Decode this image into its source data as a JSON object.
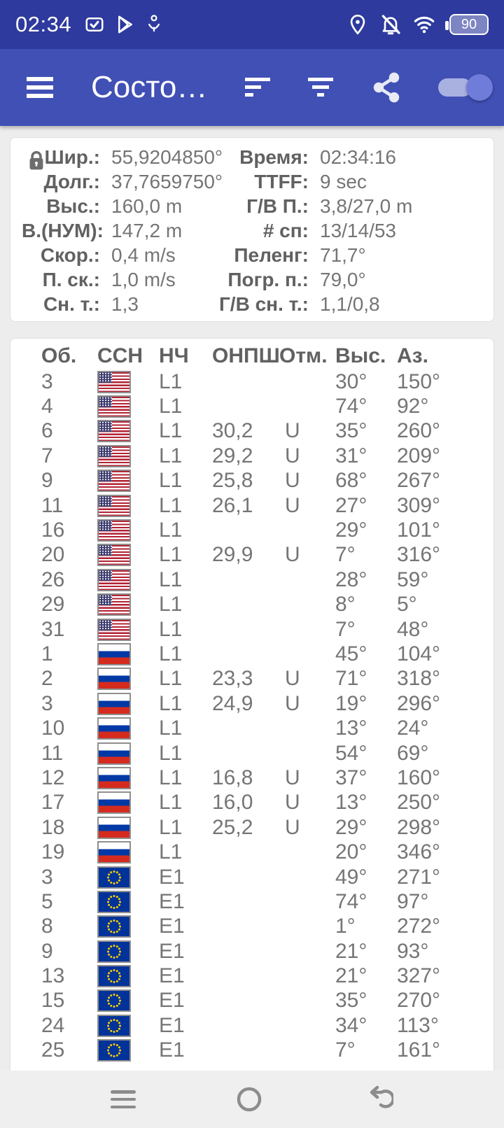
{
  "status_bar": {
    "time": "02:34",
    "battery_percent": "90",
    "left_icons": [
      "checkbox-notification",
      "play-store",
      "usb-beacon"
    ],
    "right_icons": [
      "location-on",
      "notifications-off",
      "wifi",
      "battery"
    ]
  },
  "app_bar": {
    "title": "Состо…",
    "background_color": "#4150b5",
    "status_bar_color": "#2e3a9d",
    "toggle_on": true,
    "icons": [
      "menu",
      "sort",
      "filter",
      "share",
      "toggle"
    ]
  },
  "info_card": {
    "lock_icon": "location-locked",
    "rows": [
      {
        "label_left": "Шир.:",
        "value_left": "55,9204850°",
        "label_right": "Время:",
        "value_right": "02:34:16"
      },
      {
        "label_left": "Долг.:",
        "value_left": "37,7659750°",
        "label_right": "TTFF:",
        "value_right": "9 sec"
      },
      {
        "label_left": "Выс.:",
        "value_left": "160,0 m",
        "label_right": "Г/В П.:",
        "value_right": "3,8/27,0 m"
      },
      {
        "label_left": "В.(НУМ):",
        "value_left": "147,2 m",
        "label_right": "# сп:",
        "value_right": "13/14/53"
      },
      {
        "label_left": "Скор.:",
        "value_left": "0,4 m/s",
        "label_right": "Пеленг:",
        "value_right": "71,7°"
      },
      {
        "label_left": "П. ск.:",
        "value_left": "1,0 m/s",
        "label_right": "Погр. п.:",
        "value_right": "79,0°"
      },
      {
        "label_left": "Сн. т.:",
        "value_left": "1,3",
        "label_right": "Г/В сн. т.:",
        "value_right": "1,1/0,8"
      }
    ]
  },
  "table": {
    "headers": [
      "Об.",
      "ССН",
      "НЧ",
      "ОНПШ",
      "Отм.",
      "Выс.",
      "Аз."
    ],
    "rows": [
      {
        "id": "3",
        "flag": "usa",
        "freq": "L1",
        "cn0": "",
        "used": "",
        "elev": "30°",
        "az": "150°"
      },
      {
        "id": "4",
        "flag": "usa",
        "freq": "L1",
        "cn0": "",
        "used": "",
        "elev": "74°",
        "az": "92°"
      },
      {
        "id": "6",
        "flag": "usa",
        "freq": "L1",
        "cn0": "30,2",
        "used": "U",
        "elev": "35°",
        "az": "260°"
      },
      {
        "id": "7",
        "flag": "usa",
        "freq": "L1",
        "cn0": "29,2",
        "used": "U",
        "elev": "31°",
        "az": "209°"
      },
      {
        "id": "9",
        "flag": "usa",
        "freq": "L1",
        "cn0": "25,8",
        "used": "U",
        "elev": "68°",
        "az": "267°"
      },
      {
        "id": "11",
        "flag": "usa",
        "freq": "L1",
        "cn0": "26,1",
        "used": "U",
        "elev": "27°",
        "az": "309°"
      },
      {
        "id": "16",
        "flag": "usa",
        "freq": "L1",
        "cn0": "",
        "used": "",
        "elev": "29°",
        "az": "101°"
      },
      {
        "id": "20",
        "flag": "usa",
        "freq": "L1",
        "cn0": "29,9",
        "used": "U",
        "elev": "7°",
        "az": "316°"
      },
      {
        "id": "26",
        "flag": "usa",
        "freq": "L1",
        "cn0": "",
        "used": "",
        "elev": "28°",
        "az": "59°"
      },
      {
        "id": "29",
        "flag": "usa",
        "freq": "L1",
        "cn0": "",
        "used": "",
        "elev": "8°",
        "az": "5°"
      },
      {
        "id": "31",
        "flag": "usa",
        "freq": "L1",
        "cn0": "",
        "used": "",
        "elev": "7°",
        "az": "48°"
      },
      {
        "id": "1",
        "flag": "russia",
        "freq": "L1",
        "cn0": "",
        "used": "",
        "elev": "45°",
        "az": "104°"
      },
      {
        "id": "2",
        "flag": "russia",
        "freq": "L1",
        "cn0": "23,3",
        "used": "U",
        "elev": "71°",
        "az": "318°"
      },
      {
        "id": "3",
        "flag": "russia",
        "freq": "L1",
        "cn0": "24,9",
        "used": "U",
        "elev": "19°",
        "az": "296°"
      },
      {
        "id": "10",
        "flag": "russia",
        "freq": "L1",
        "cn0": "",
        "used": "",
        "elev": "13°",
        "az": "24°"
      },
      {
        "id": "11",
        "flag": "russia",
        "freq": "L1",
        "cn0": "",
        "used": "",
        "elev": "54°",
        "az": "69°"
      },
      {
        "id": "12",
        "flag": "russia",
        "freq": "L1",
        "cn0": "16,8",
        "used": "U",
        "elev": "37°",
        "az": "160°"
      },
      {
        "id": "17",
        "flag": "russia",
        "freq": "L1",
        "cn0": "16,0",
        "used": "U",
        "elev": "13°",
        "az": "250°"
      },
      {
        "id": "18",
        "flag": "russia",
        "freq": "L1",
        "cn0": "25,2",
        "used": "U",
        "elev": "29°",
        "az": "298°"
      },
      {
        "id": "19",
        "flag": "russia",
        "freq": "L1",
        "cn0": "",
        "used": "",
        "elev": "20°",
        "az": "346°"
      },
      {
        "id": "3",
        "flag": "eu",
        "freq": "E1",
        "cn0": "",
        "used": "",
        "elev": "49°",
        "az": "271°"
      },
      {
        "id": "5",
        "flag": "eu",
        "freq": "E1",
        "cn0": "",
        "used": "",
        "elev": "74°",
        "az": "97°"
      },
      {
        "id": "8",
        "flag": "eu",
        "freq": "E1",
        "cn0": "",
        "used": "",
        "elev": "1°",
        "az": "272°"
      },
      {
        "id": "9",
        "flag": "eu",
        "freq": "E1",
        "cn0": "",
        "used": "",
        "elev": "21°",
        "az": "93°"
      },
      {
        "id": "13",
        "flag": "eu",
        "freq": "E1",
        "cn0": "",
        "used": "",
        "elev": "21°",
        "az": "327°"
      },
      {
        "id": "15",
        "flag": "eu",
        "freq": "E1",
        "cn0": "",
        "used": "",
        "elev": "35°",
        "az": "270°"
      },
      {
        "id": "24",
        "flag": "eu",
        "freq": "E1",
        "cn0": "",
        "used": "",
        "elev": "34°",
        "az": "113°"
      },
      {
        "id": "25",
        "flag": "eu",
        "freq": "E1",
        "cn0": "",
        "used": "",
        "elev": "7°",
        "az": "161°"
      }
    ]
  },
  "nav_bar": {
    "icons": [
      "menu",
      "home",
      "back"
    ]
  }
}
